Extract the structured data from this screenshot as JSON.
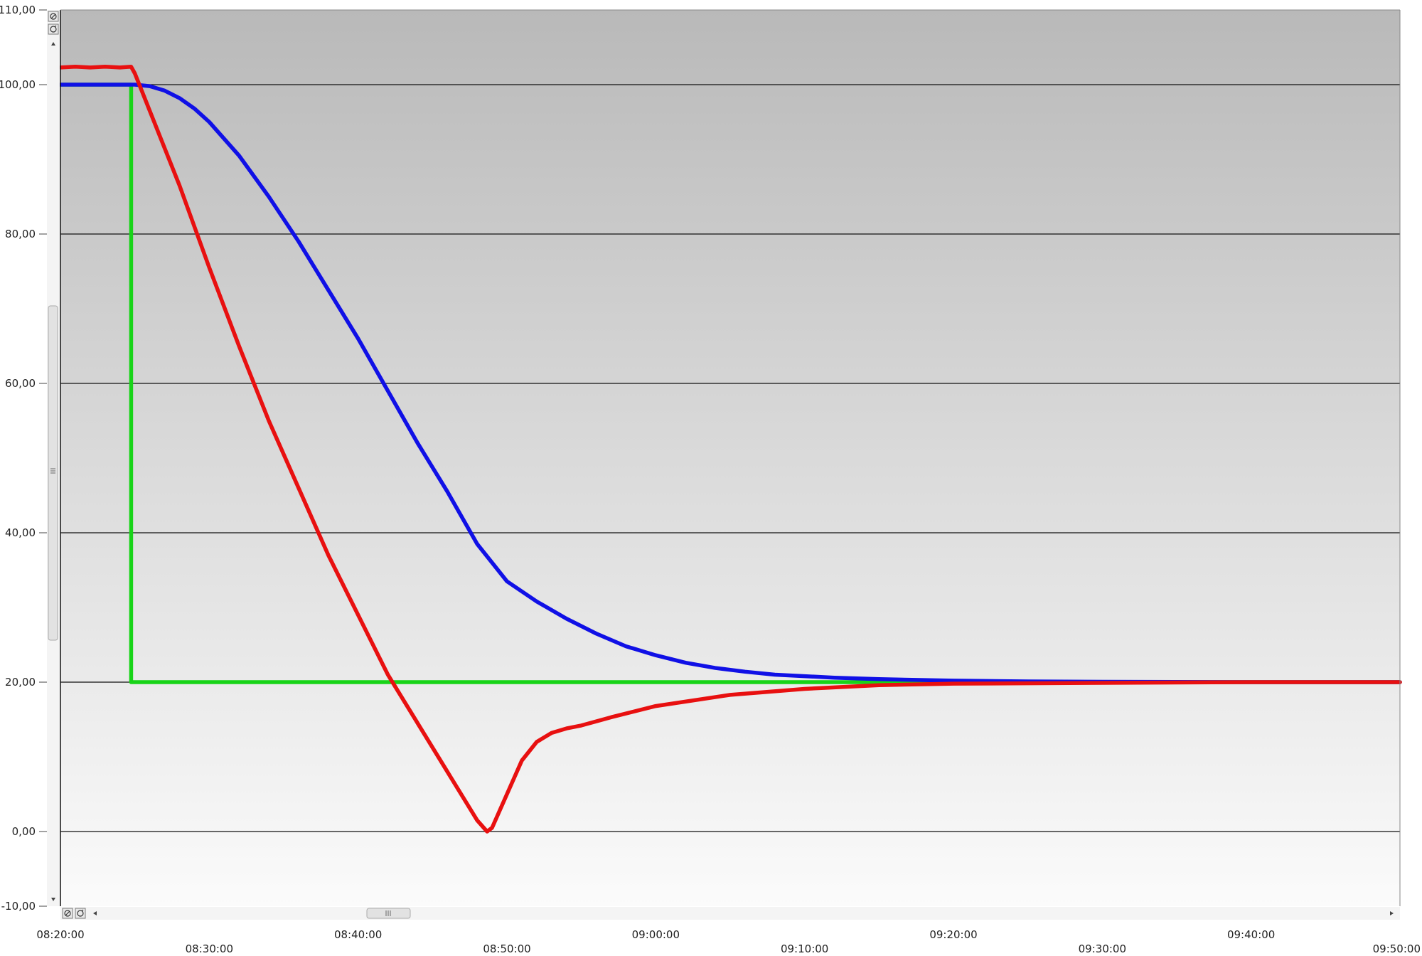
{
  "colors": {
    "plot_top": "#b9b9b9",
    "plot_bottom": "#fbfbfb",
    "gridline": "#111111",
    "series_red": "#e81010",
    "series_blue": "#1010e6",
    "series_green": "#18d418"
  },
  "controls": {
    "vertical_scroll": {
      "icons": [
        "zoom-reset-icon",
        "zoom-icon",
        "scroll-up-icon",
        "scroll-down-icon",
        "scroll-grip-icon"
      ],
      "thumb_range": [
        0.38,
        0.7
      ]
    },
    "horizontal_scroll": {
      "icons": [
        "zoom-reset-icon",
        "zoom-icon",
        "scroll-left-icon",
        "scroll-right-icon",
        "scroll-grip-icon"
      ],
      "thumb_range": [
        0.23,
        0.26
      ]
    }
  },
  "chart_data": {
    "type": "line",
    "title": "",
    "xlabel": "",
    "ylabel": "",
    "ylim": [
      -10,
      110
    ],
    "xlim": [
      "08:20:00",
      "09:50:00"
    ],
    "grid": {
      "horizontal": true,
      "vertical": false
    },
    "yticks": [
      "110,00",
      "100,00",
      "80,00",
      "60,00",
      "40,00",
      "20,00",
      "0,00",
      "-10,00"
    ],
    "ytick_values": [
      110,
      100,
      80,
      60,
      40,
      20,
      0,
      -10
    ],
    "xticks": [
      "08:20:00",
      "08:30:00",
      "08:40:00",
      "08:50:00",
      "09:00:00",
      "09:10:00",
      "09:20:00",
      "09:30:00",
      "09:40:00",
      "09:50:00"
    ],
    "series": [
      {
        "color": "#18d418",
        "x": [
          "08:20:00",
          "08:24:45",
          "08:24:45",
          "09:50:00"
        ],
        "y": [
          100,
          100,
          20,
          20
        ]
      },
      {
        "color": "#1010e6",
        "x": [
          "08:20:00",
          "08:25:00",
          "08:26:00",
          "08:27:00",
          "08:28:00",
          "08:29:00",
          "08:30:00",
          "08:32:00",
          "08:34:00",
          "08:36:00",
          "08:38:00",
          "08:40:00",
          "08:42:00",
          "08:44:00",
          "08:46:00",
          "08:48:00",
          "08:49:00",
          "08:50:00",
          "08:52:00",
          "08:54:00",
          "08:56:00",
          "08:58:00",
          "09:00:00",
          "09:02:00",
          "09:04:00",
          "09:06:00",
          "09:08:00",
          "09:10:00",
          "09:12:00",
          "09:15:00",
          "09:20:00",
          "09:25:00",
          "09:30:00",
          "09:40:00",
          "09:50:00"
        ],
        "y": [
          100,
          100,
          99.8,
          99.2,
          98.2,
          96.8,
          95,
          90.5,
          85,
          79,
          72.5,
          66,
          59,
          52,
          45.5,
          38.5,
          36,
          33.5,
          30.8,
          28.5,
          26.5,
          24.8,
          23.6,
          22.6,
          21.9,
          21.4,
          21.0,
          20.8,
          20.6,
          20.4,
          20.2,
          20.1,
          20.05,
          20.0,
          20.0
        ]
      },
      {
        "color": "#e81010",
        "x": [
          "08:20:00",
          "08:21:00",
          "08:22:00",
          "08:23:00",
          "08:24:00",
          "08:24:45",
          "08:25:00",
          "08:26:00",
          "08:27:00",
          "08:28:00",
          "08:29:00",
          "08:30:00",
          "08:32:00",
          "08:34:00",
          "08:36:00",
          "08:38:00",
          "08:40:00",
          "08:42:00",
          "08:44:00",
          "08:46:00",
          "08:48:00",
          "08:48:40",
          "08:49:00",
          "08:50:00",
          "08:51:00",
          "08:52:00",
          "08:53:00",
          "08:54:00",
          "08:55:00",
          "08:57:00",
          "09:00:00",
          "09:05:00",
          "09:10:00",
          "09:15:00",
          "09:20:00",
          "09:30:00",
          "09:40:00",
          "09:50:00"
        ],
        "y": [
          102.3,
          102.4,
          102.3,
          102.4,
          102.3,
          102.4,
          101.5,
          96.5,
          91.5,
          86.5,
          81,
          75.5,
          65,
          55,
          46,
          37,
          29,
          21,
          14.5,
          8,
          1.5,
          0,
          0.5,
          5,
          9.5,
          12,
          13.2,
          13.8,
          14.2,
          15.3,
          16.8,
          18.3,
          19.1,
          19.6,
          19.8,
          19.9,
          20.0,
          20.0
        ]
      }
    ]
  }
}
